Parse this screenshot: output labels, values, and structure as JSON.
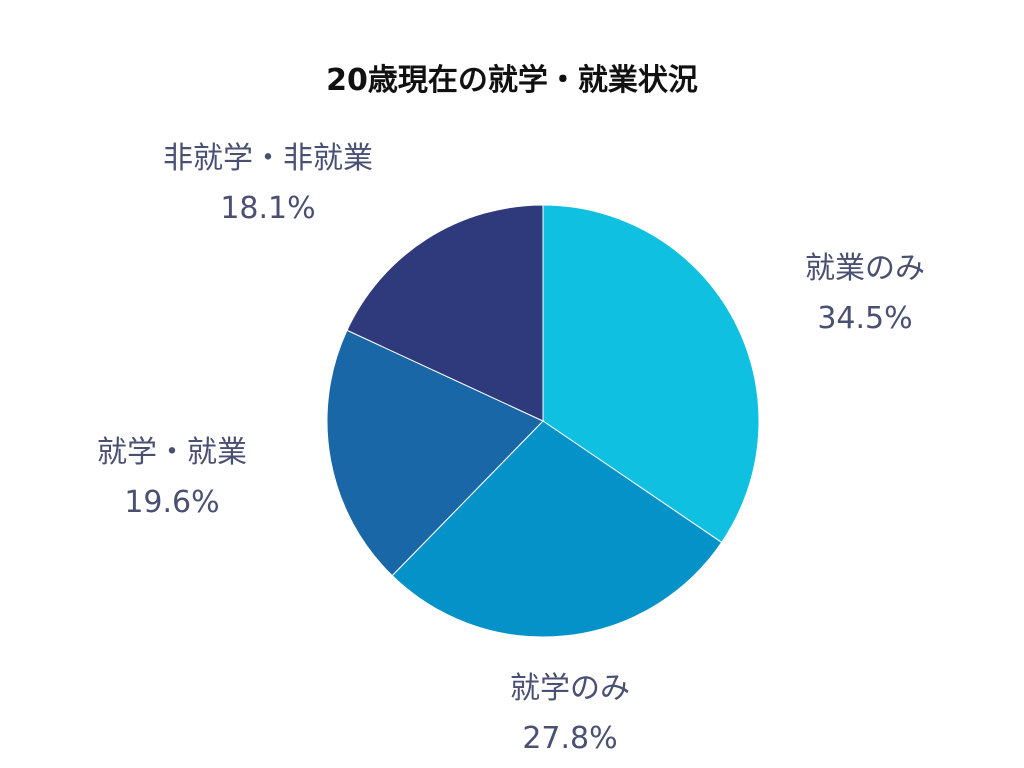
{
  "chart_data": {
    "type": "pie",
    "title": "20歳現在の就学・就業状況",
    "start": "top",
    "direction": "clockwise",
    "slices": [
      {
        "label": "就業のみ",
        "value": 34.5,
        "value_label": "34.5%",
        "color": "#0fc0e0"
      },
      {
        "label": "就学のみ",
        "value": 27.8,
        "value_label": "27.8%",
        "color": "#0592c9"
      },
      {
        "label": "就学・就業",
        "value": 19.6,
        "value_label": "19.6%",
        "color": "#1967a6"
      },
      {
        "label": "非就学・非就業",
        "value": 18.1,
        "value_label": "18.1%",
        "color": "#2e3a7c"
      }
    ]
  }
}
